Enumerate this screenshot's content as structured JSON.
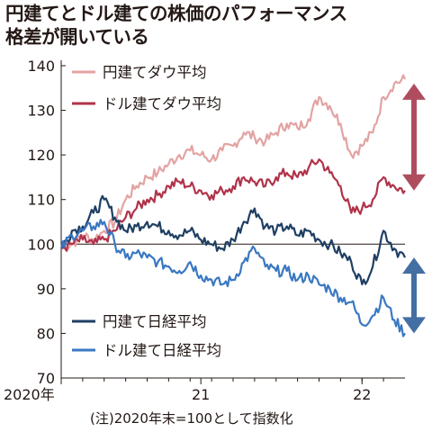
{
  "title_lines": [
    "円建てとドル建ての株価のパフォーマンス",
    "格差が開いている"
  ],
  "footnote": "(注)2020年末=100として指数化",
  "colors": {
    "yen_dow": "#e3a3a3",
    "usd_dow": "#b0334a",
    "yen_nikkei": "#1f3f63",
    "usd_nikkei": "#3a78c2",
    "arrow_red": "#a63a4c",
    "arrow_blue": "#2f5f99",
    "axis": "#231815"
  },
  "chart_data": {
    "type": "line",
    "title": "円建てとドル建ての株価のパフォーマンス格差が開いている",
    "ylim": [
      70,
      140
    ],
    "yticks": [
      70,
      80,
      90,
      100,
      110,
      120,
      130,
      140
    ],
    "xlim": [
      0,
      16
    ],
    "x_unit": "months since 2020-12",
    "xticks": [
      {
        "x": 0,
        "label": "2020年"
      },
      {
        "x": 6.5,
        "label": "21"
      },
      {
        "x": 14,
        "label": "22"
      }
    ],
    "reference_line": 100,
    "legend": [
      "円建てダウ平均",
      "ドル建てダウ平均",
      "円建て日経平均",
      "ドル建て日経平均"
    ],
    "series": [
      {
        "name": "円建てダウ平均",
        "color_key": "yen_dow",
        "x": [
          0,
          0.5,
          1,
          1.5,
          2,
          2.5,
          3,
          3.5,
          4,
          4.5,
          5,
          5.5,
          6,
          6.5,
          7,
          7.5,
          8,
          8.5,
          9,
          9.5,
          10,
          10.5,
          11,
          11.5,
          12,
          12.5,
          13,
          13.5,
          14,
          14.5,
          15,
          15.5,
          16
        ],
        "values": [
          99,
          100,
          102,
          101,
          103,
          105,
          110,
          113,
          115,
          116,
          118,
          120,
          121,
          120,
          119,
          121,
          122,
          125,
          124,
          123,
          125,
          127,
          126,
          128,
          133,
          131,
          127,
          120,
          122,
          125,
          133,
          136,
          137
        ]
      },
      {
        "name": "ドル建てダウ平均",
        "color_key": "usd_dow",
        "x": [
          0,
          0.5,
          1,
          1.5,
          2,
          2.5,
          3,
          3.5,
          4,
          4.5,
          5,
          5.5,
          6,
          6.5,
          7,
          7.5,
          8,
          8.5,
          9,
          9.5,
          10,
          10.5,
          11,
          11.5,
          12,
          12.5,
          13,
          13.5,
          14,
          14.5,
          15,
          15.5,
          16
        ],
        "values": [
          99,
          100,
          101,
          100,
          101,
          103,
          106,
          108,
          110,
          111,
          113,
          114,
          113,
          112,
          111,
          112,
          113,
          115,
          114,
          113,
          115,
          116,
          115,
          117,
          119,
          116,
          113,
          107,
          108,
          110,
          115,
          113,
          112
        ]
      },
      {
        "name": "円建て日経平均",
        "color_key": "yen_nikkei",
        "x": [
          0,
          0.5,
          1,
          1.5,
          2,
          2.5,
          3,
          3.5,
          4,
          4.5,
          5,
          5.5,
          6,
          6.5,
          7,
          7.5,
          8,
          8.5,
          9,
          9.5,
          10,
          10.5,
          11,
          11.5,
          12,
          12.5,
          13,
          13.5,
          14,
          14.5,
          15,
          15.5,
          16
        ],
        "values": [
          99,
          103,
          104,
          107,
          110,
          106,
          103,
          104,
          105,
          104,
          103,
          102,
          103,
          101,
          100,
          99,
          101,
          105,
          108,
          104,
          103,
          104,
          102,
          103,
          101,
          100,
          98,
          96,
          91,
          95,
          103,
          99,
          97
        ]
      },
      {
        "name": "ドル建て日経平均",
        "color_key": "usd_nikkei",
        "x": [
          0,
          0.5,
          1,
          1.5,
          2,
          2.5,
          3,
          3.5,
          4,
          4.5,
          5,
          5.5,
          6,
          6.5,
          7,
          7.5,
          8,
          8.5,
          9,
          9.5,
          10,
          10.5,
          11,
          11.5,
          12,
          12.5,
          13,
          13.5,
          14,
          14.5,
          15,
          15.5,
          16
        ],
        "values": [
          99,
          102,
          103,
          104,
          105,
          100,
          97,
          98,
          97,
          96,
          95,
          94,
          96,
          93,
          92,
          91,
          92,
          96,
          99,
          95,
          94,
          94,
          92,
          93,
          91,
          90,
          88,
          87,
          82,
          84,
          88,
          83,
          80
        ]
      }
    ]
  }
}
